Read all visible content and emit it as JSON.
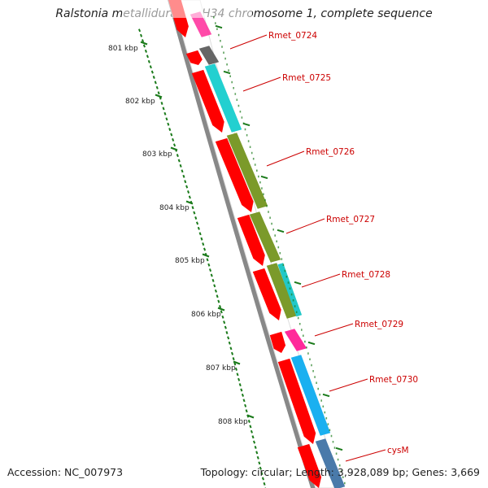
{
  "title": "Ralstonia metallidurans CH34 chromosome 1, complete sequence",
  "accession": "Accession: NC_007973",
  "summary": "Topology: circular; Length: 3,928,089 bp; Genes: 3,669",
  "scale": {
    "labels": [
      "801 kbp",
      "802 kbp",
      "803 kbp",
      "804 kbp",
      "805 kbp",
      "806 kbp",
      "807 kbp",
      "808 kbp"
    ],
    "tick_color": "#1a7a1a"
  },
  "genes": [
    {
      "label": "Rmet_0724",
      "color": "#666666"
    },
    {
      "label": "Rmet_0725",
      "color": "#22d0d0"
    },
    {
      "label": "Rmet_0726",
      "color": "#7b9a2a"
    },
    {
      "label": "Rmet_0727",
      "color": "#7b9a2a"
    },
    {
      "label": "Rmet_0728",
      "color": "#22c8c8"
    },
    {
      "label": "Rmet_0729",
      "color": "#ff2a9a"
    },
    {
      "label": "Rmet_0730",
      "color": "#1ab0f0"
    },
    {
      "label": "cysM",
      "color": "#4a7aaa"
    }
  ],
  "colors": {
    "cds_arrow": "#ff0000",
    "backbone": "#888888",
    "label_line": "#cc0000"
  }
}
